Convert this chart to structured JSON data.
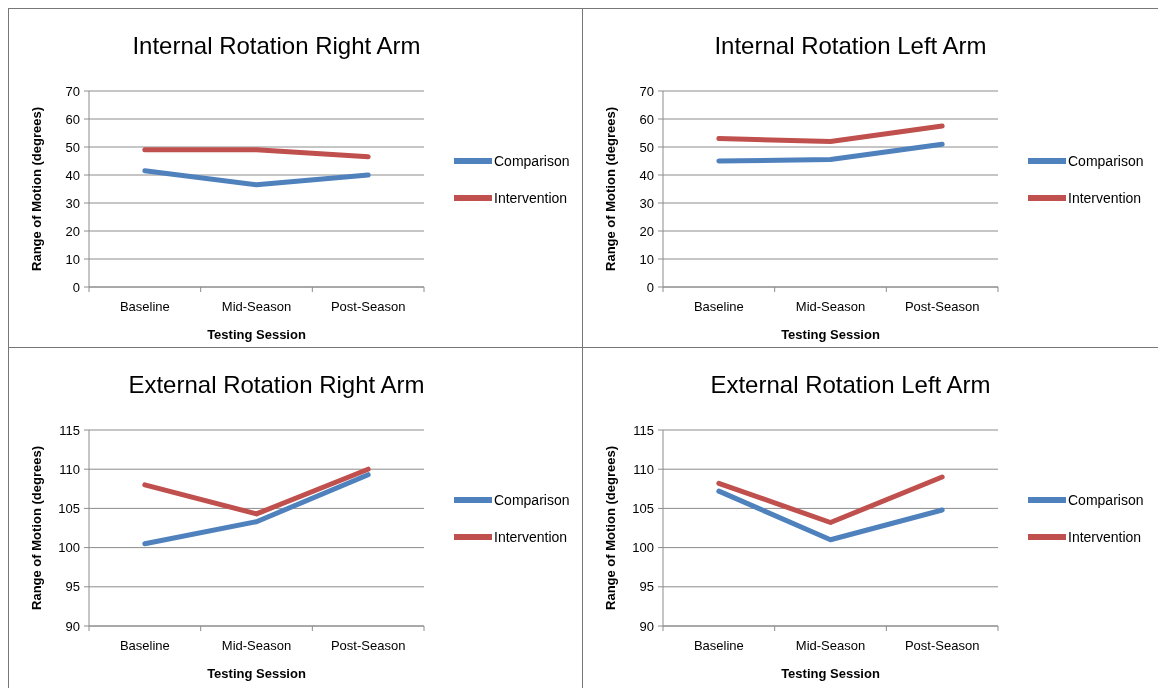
{
  "chart_data": [
    {
      "type": "line",
      "title": "Internal Rotation Right Arm",
      "xlabel": "Testing Session",
      "ylabel": "Range of Motion (degrees)",
      "categories": [
        "Baseline",
        "Mid-Season",
        "Post-Season"
      ],
      "series": [
        {
          "name": "Comparison",
          "color": "#4f81bd",
          "values": [
            41.5,
            36.5,
            40
          ]
        },
        {
          "name": "Intervention",
          "color": "#c0504d",
          "values": [
            49,
            49,
            46.5
          ]
        }
      ],
      "ylim": [
        0,
        70
      ],
      "yticks": [
        0,
        10,
        20,
        30,
        40,
        50,
        60,
        70
      ],
      "grid": "y",
      "legend": "right",
      "marker": "none"
    },
    {
      "type": "line",
      "title": "Internal Rotation Left Arm",
      "xlabel": "Testing Session",
      "ylabel": "Range of Motion (degrees)",
      "categories": [
        "Baseline",
        "Mid-Season",
        "Post-Season"
      ],
      "series": [
        {
          "name": "Comparison",
          "color": "#4f81bd",
          "values": [
            45,
            45.5,
            51
          ]
        },
        {
          "name": "Intervention",
          "color": "#c0504d",
          "values": [
            53,
            52,
            57.5
          ]
        }
      ],
      "ylim": [
        0,
        70
      ],
      "yticks": [
        0,
        10,
        20,
        30,
        40,
        50,
        60,
        70
      ],
      "grid": "y",
      "legend": "right",
      "marker": "none"
    },
    {
      "type": "line",
      "title": "External Rotation Right Arm",
      "xlabel": "Testing Session",
      "ylabel": "Range of Motion (degrees)",
      "categories": [
        "Baseline",
        "Mid-Season",
        "Post-Season"
      ],
      "series": [
        {
          "name": "Comparison",
          "color": "#4f81bd",
          "values": [
            100.5,
            103.3,
            109.3
          ]
        },
        {
          "name": "Intervention",
          "color": "#c0504d",
          "values": [
            108,
            104.3,
            110
          ]
        }
      ],
      "ylim": [
        90,
        115
      ],
      "yticks": [
        90,
        95,
        100,
        105,
        110,
        115
      ],
      "grid": "y",
      "legend": "right",
      "marker": "none"
    },
    {
      "type": "line",
      "title": "External Rotation Left Arm",
      "xlabel": "Testing Session",
      "ylabel": "Range of Motion (degrees)",
      "categories": [
        "Baseline",
        "Mid-Season",
        "Post-Season"
      ],
      "series": [
        {
          "name": "Comparison",
          "color": "#4f81bd",
          "values": [
            107.2,
            101,
            104.8
          ]
        },
        {
          "name": "Intervention",
          "color": "#c0504d",
          "values": [
            108.2,
            103.2,
            109
          ]
        }
      ],
      "ylim": [
        90,
        115
      ],
      "yticks": [
        90,
        95,
        100,
        105,
        110,
        115
      ],
      "grid": "y",
      "legend": "right",
      "marker": "none"
    }
  ]
}
